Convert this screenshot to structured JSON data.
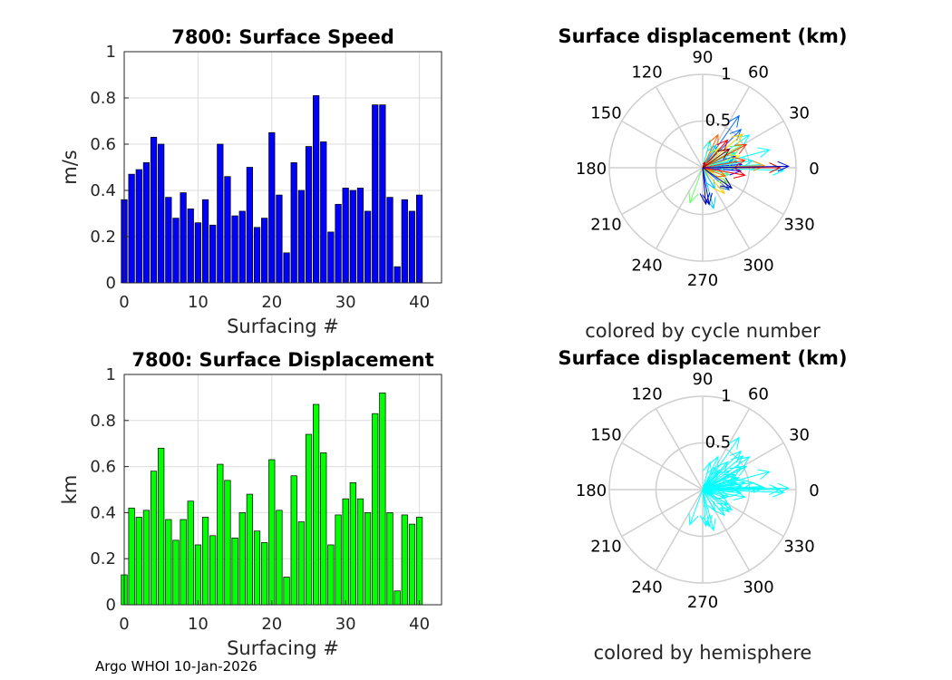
{
  "footer": "Argo WHOI 10-Jan-2026",
  "chart_data": [
    {
      "type": "bar",
      "title": "7800: Surface Speed",
      "xlabel": "Surfacing #",
      "ylabel": "m/s",
      "xlim": [
        0,
        43
      ],
      "ylim": [
        0,
        1
      ],
      "xticks": [
        "0",
        "10",
        "20",
        "30",
        "40"
      ],
      "yticks": [
        "0",
        "0.2",
        "0.4",
        "0.6",
        "0.8",
        "1"
      ],
      "bar_color": "#0000ff",
      "x": [
        0,
        1,
        2,
        3,
        4,
        5,
        6,
        7,
        8,
        9,
        10,
        11,
        12,
        13,
        14,
        15,
        16,
        17,
        18,
        19,
        20,
        21,
        22,
        23,
        24,
        25,
        26,
        27,
        28,
        29,
        30,
        31,
        32,
        33,
        34,
        35,
        36,
        37,
        38,
        39,
        40
      ],
      "values": [
        0.36,
        0.47,
        0.49,
        0.52,
        0.63,
        0.6,
        0.37,
        0.28,
        0.39,
        0.32,
        0.26,
        0.36,
        0.25,
        0.6,
        0.46,
        0.29,
        0.31,
        0.5,
        0.24,
        0.28,
        0.65,
        0.38,
        0.13,
        0.52,
        0.4,
        0.59,
        0.81,
        0.61,
        0.22,
        0.34,
        0.41,
        0.4,
        0.41,
        0.31,
        0.77,
        0.77,
        0.37,
        0.07,
        0.36,
        0.31,
        0.38
      ]
    },
    {
      "type": "bar",
      "title": "7800: Surface Displacement",
      "xlabel": "Surfacing #",
      "ylabel": "km",
      "xlim": [
        0,
        43
      ],
      "ylim": [
        0,
        1
      ],
      "xticks": [
        "0",
        "10",
        "20",
        "30",
        "40"
      ],
      "yticks": [
        "0",
        "0.2",
        "0.4",
        "0.6",
        "0.8",
        "1"
      ],
      "bar_color": "#00ff00",
      "x": [
        0,
        1,
        2,
        3,
        4,
        5,
        6,
        7,
        8,
        9,
        10,
        11,
        12,
        13,
        14,
        15,
        16,
        17,
        18,
        19,
        20,
        21,
        22,
        23,
        24,
        25,
        26,
        27,
        28,
        29,
        30,
        31,
        32,
        33,
        34,
        35,
        36,
        37,
        38,
        39,
        40
      ],
      "values": [
        0.13,
        0.42,
        0.38,
        0.41,
        0.58,
        0.68,
        0.37,
        0.28,
        0.37,
        0.45,
        0.26,
        0.38,
        0.3,
        0.61,
        0.54,
        0.29,
        0.4,
        0.48,
        0.32,
        0.27,
        0.63,
        0.41,
        0.12,
        0.56,
        0.36,
        0.74,
        0.87,
        0.66,
        0.26,
        0.39,
        0.46,
        0.53,
        0.46,
        0.4,
        0.83,
        0.92,
        0.4,
        0.06,
        0.39,
        0.35,
        0.38
      ]
    },
    {
      "type": "polar-quiver",
      "title": "Surface displacement (km)",
      "subtitle": "colored by cycle number",
      "rlim": [
        0,
        1
      ],
      "rticks": [
        "0.5",
        "1"
      ],
      "theta_ticks": [
        "0",
        "30",
        "60",
        "90",
        "120",
        "150",
        "180",
        "210",
        "240",
        "270",
        "300",
        "330"
      ],
      "colormap": "jet",
      "vectors": [
        {
          "angle": 5,
          "r": 0.42,
          "color": "#0000ff"
        },
        {
          "angle": 20,
          "r": 0.38,
          "color": "#0000ff"
        },
        {
          "angle": -5,
          "r": 0.41,
          "color": "#0000ff"
        },
        {
          "angle": 45,
          "r": 0.58,
          "color": "#0066ff"
        },
        {
          "angle": 55,
          "r": 0.68,
          "color": "#0066ff"
        },
        {
          "angle": -40,
          "r": 0.37,
          "color": "#0066ff"
        },
        {
          "angle": 60,
          "r": 0.28,
          "color": "#00ccff"
        },
        {
          "angle": 12,
          "r": 0.37,
          "color": "#00ccff"
        },
        {
          "angle": -75,
          "r": 0.45,
          "color": "#00ccff"
        },
        {
          "angle": -60,
          "r": 0.26,
          "color": "#00ccff"
        },
        {
          "angle": 25,
          "r": 0.38,
          "color": "#00ffcc"
        },
        {
          "angle": 75,
          "r": 0.3,
          "color": "#00ffcc"
        },
        {
          "angle": 35,
          "r": 0.61,
          "color": "#00ffff"
        },
        {
          "angle": 8,
          "r": 0.54,
          "color": "#00ffff"
        },
        {
          "angle": -15,
          "r": 0.29,
          "color": "#33ff99"
        },
        {
          "angle": -110,
          "r": 0.4,
          "color": "#66ff66"
        },
        {
          "angle": 30,
          "r": 0.48,
          "color": "#66ff66"
        },
        {
          "angle": -30,
          "r": 0.32,
          "color": "#99ff33"
        },
        {
          "angle": 50,
          "r": 0.27,
          "color": "#ccff00"
        },
        {
          "angle": 3,
          "r": 0.63,
          "color": "#00ffff"
        },
        {
          "angle": 18,
          "r": 0.41,
          "color": "#ffff00"
        },
        {
          "angle": -25,
          "r": 0.12,
          "color": "#ffcc00"
        },
        {
          "angle": 40,
          "r": 0.56,
          "color": "#ffcc00"
        },
        {
          "angle": -50,
          "r": 0.36,
          "color": "#ffcc00"
        },
        {
          "angle": 15,
          "r": 0.74,
          "color": "#00ffff"
        },
        {
          "angle": -2,
          "r": 0.87,
          "color": "#00ffff"
        },
        {
          "angle": 2,
          "r": 0.66,
          "color": "#ff9900"
        },
        {
          "angle": -20,
          "r": 0.26,
          "color": "#ff6600"
        },
        {
          "angle": 65,
          "r": 0.39,
          "color": "#ff6600"
        },
        {
          "angle": 10,
          "r": 0.46,
          "color": "#ff3300"
        },
        {
          "angle": 28,
          "r": 0.53,
          "color": "#ff3300"
        },
        {
          "angle": -10,
          "r": 0.46,
          "color": "#ff0000"
        },
        {
          "angle": 48,
          "r": 0.4,
          "color": "#ff0000"
        },
        {
          "angle": 0,
          "r": 0.83,
          "color": "#cc0000"
        },
        {
          "angle": 1,
          "r": 0.92,
          "color": "#0000cc"
        },
        {
          "angle": -80,
          "r": 0.4,
          "color": "#0000cc"
        },
        {
          "angle": 70,
          "r": 0.06,
          "color": "#990000"
        },
        {
          "angle": -85,
          "r": 0.39,
          "color": "#0000aa"
        },
        {
          "angle": 35,
          "r": 0.35,
          "color": "#800000"
        },
        {
          "angle": -35,
          "r": 0.38,
          "color": "#000099"
        }
      ]
    },
    {
      "type": "polar-quiver",
      "title": "Surface displacement (km)",
      "subtitle": "colored by hemisphere",
      "rlim": [
        0,
        1
      ],
      "rticks": [
        "0.5",
        "1"
      ],
      "theta_ticks": [
        "0",
        "30",
        "60",
        "90",
        "120",
        "150",
        "180",
        "210",
        "240",
        "270",
        "300",
        "330"
      ],
      "arrow_color": "#00ffff",
      "vectors": [
        {
          "angle": 5,
          "r": 0.42
        },
        {
          "angle": 20,
          "r": 0.38
        },
        {
          "angle": -5,
          "r": 0.41
        },
        {
          "angle": 45,
          "r": 0.58
        },
        {
          "angle": 55,
          "r": 0.68
        },
        {
          "angle": -40,
          "r": 0.37
        },
        {
          "angle": 60,
          "r": 0.28
        },
        {
          "angle": 12,
          "r": 0.37
        },
        {
          "angle": -75,
          "r": 0.45
        },
        {
          "angle": -60,
          "r": 0.26
        },
        {
          "angle": 25,
          "r": 0.38
        },
        {
          "angle": 75,
          "r": 0.3
        },
        {
          "angle": 35,
          "r": 0.61
        },
        {
          "angle": 8,
          "r": 0.54
        },
        {
          "angle": -15,
          "r": 0.29
        },
        {
          "angle": -110,
          "r": 0.4
        },
        {
          "angle": 30,
          "r": 0.48
        },
        {
          "angle": -30,
          "r": 0.32
        },
        {
          "angle": 50,
          "r": 0.27
        },
        {
          "angle": 3,
          "r": 0.63
        },
        {
          "angle": 18,
          "r": 0.41
        },
        {
          "angle": -25,
          "r": 0.12
        },
        {
          "angle": 40,
          "r": 0.56
        },
        {
          "angle": -50,
          "r": 0.36
        },
        {
          "angle": 15,
          "r": 0.74
        },
        {
          "angle": -2,
          "r": 0.87
        },
        {
          "angle": 2,
          "r": 0.66
        },
        {
          "angle": -20,
          "r": 0.26
        },
        {
          "angle": 65,
          "r": 0.39
        },
        {
          "angle": 10,
          "r": 0.46
        },
        {
          "angle": 28,
          "r": 0.53
        },
        {
          "angle": -10,
          "r": 0.46
        },
        {
          "angle": 48,
          "r": 0.4
        },
        {
          "angle": 0,
          "r": 0.83
        },
        {
          "angle": 1,
          "r": 0.92
        },
        {
          "angle": -80,
          "r": 0.4
        },
        {
          "angle": 70,
          "r": 0.06
        },
        {
          "angle": -85,
          "r": 0.39
        },
        {
          "angle": 35,
          "r": 0.35
        },
        {
          "angle": -35,
          "r": 0.38
        }
      ]
    }
  ]
}
